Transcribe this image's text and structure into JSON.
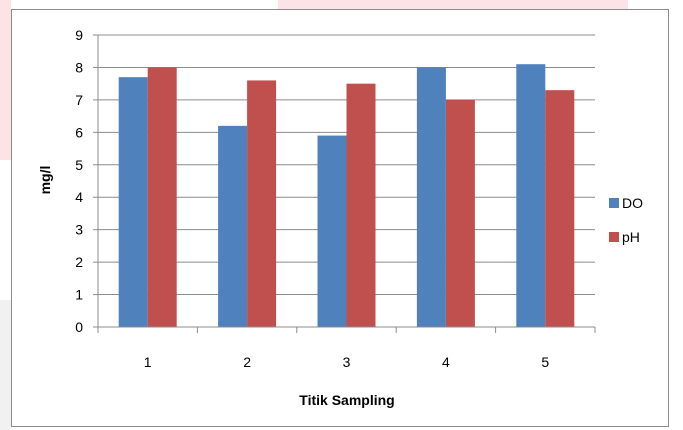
{
  "chart_data": {
    "type": "bar",
    "categories": [
      "1",
      "2",
      "3",
      "4",
      "5"
    ],
    "series": [
      {
        "name": "DO",
        "values": [
          7.7,
          6.2,
          5.9,
          8.0,
          8.1
        ],
        "color": "#4f81bd"
      },
      {
        "name": "pH",
        "values": [
          8.0,
          7.6,
          7.5,
          7.0,
          7.3
        ],
        "color": "#c0504d"
      }
    ],
    "title": "",
    "xlabel": "Titik Sampling",
    "ylabel": "mg/l",
    "ylim": [
      0,
      9
    ],
    "yticks": [
      "0",
      "1",
      "2",
      "3",
      "4",
      "5",
      "6",
      "7",
      "8",
      "9"
    ],
    "grid": true,
    "legend": "right"
  }
}
